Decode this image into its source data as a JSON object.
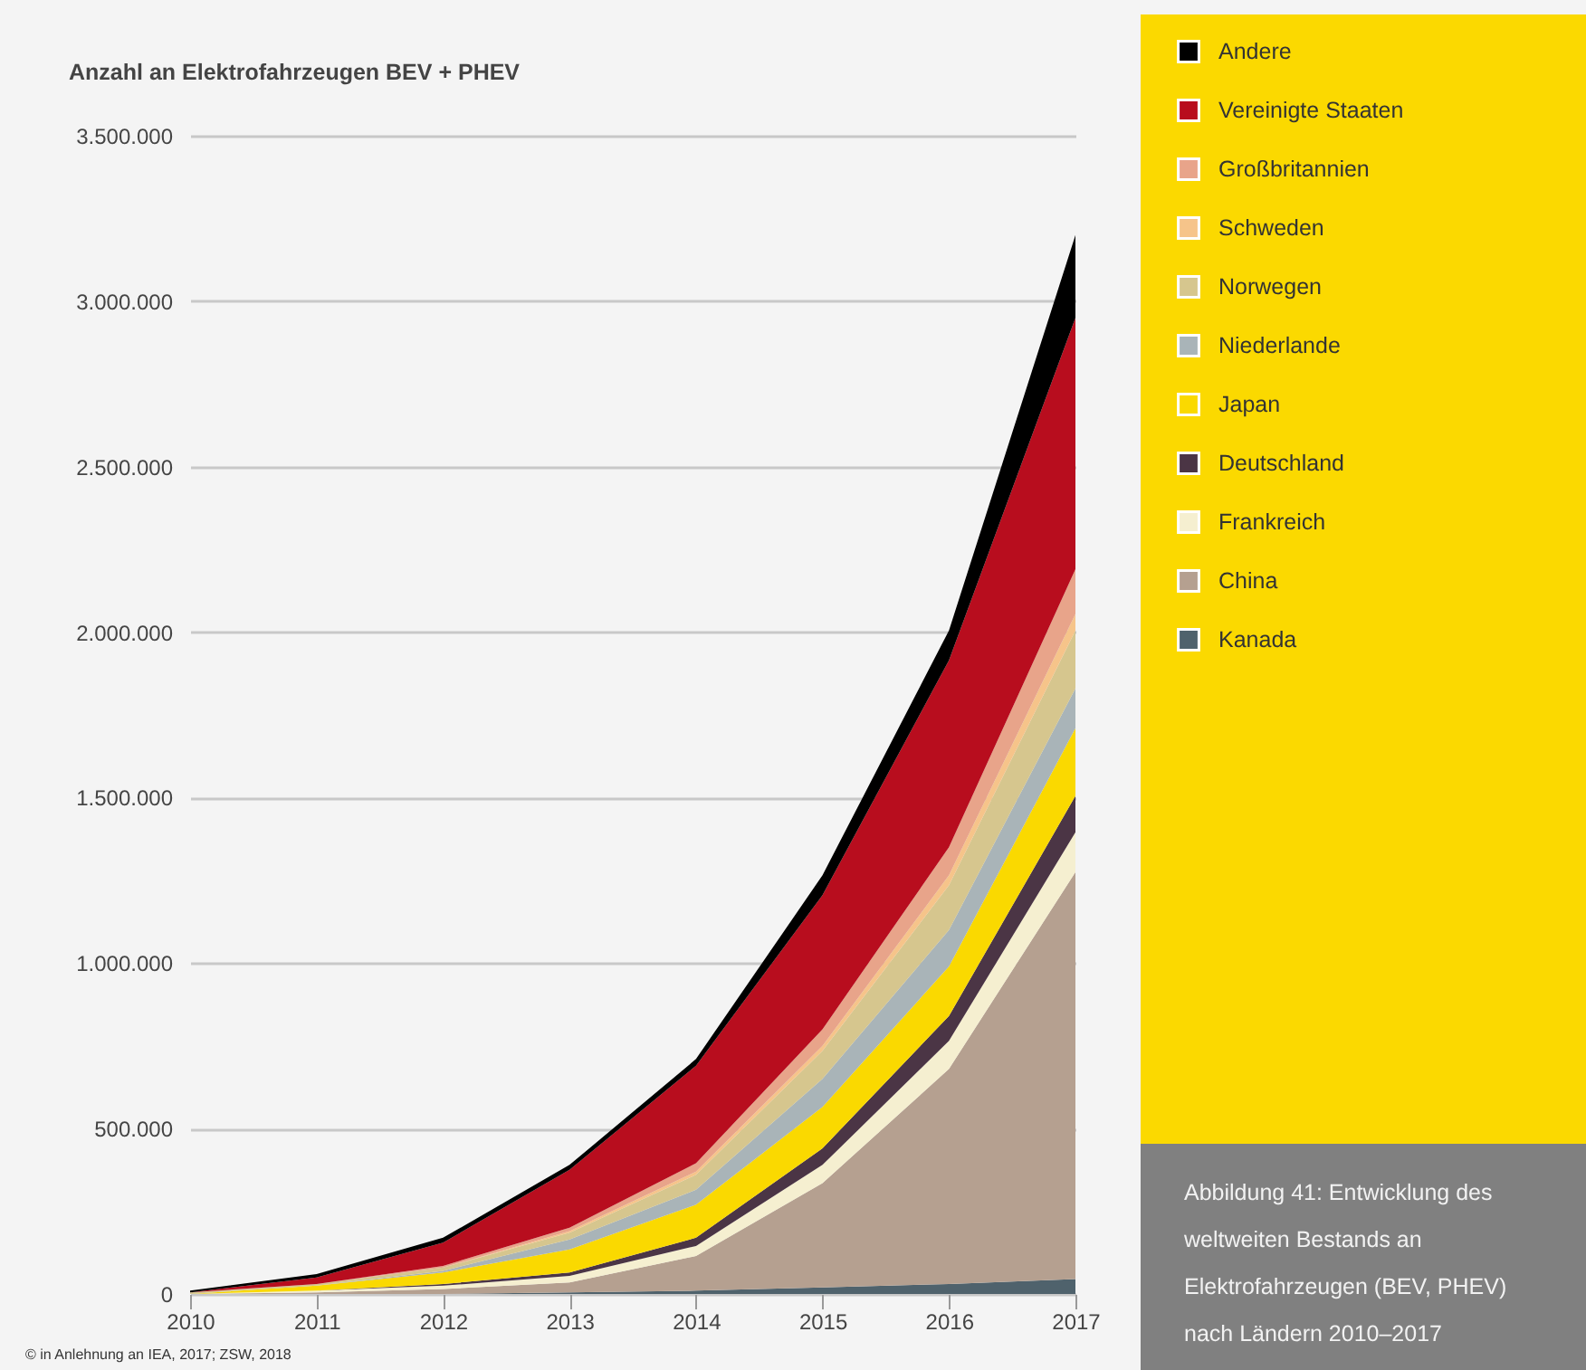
{
  "chart_data": {
    "type": "area",
    "title": "Anzahl an Elektrofahrzeugen BEV + PHEV",
    "stacked": true,
    "grid": "y",
    "legend": "right",
    "x": [
      2010,
      2011,
      2012,
      2013,
      2014,
      2015,
      2016,
      2017
    ],
    "xlim": [
      2010,
      2017
    ],
    "xticks": [
      2010,
      2011,
      2012,
      2013,
      2014,
      2015,
      2016,
      2017
    ],
    "ylim": [
      0,
      3500000
    ],
    "yticks": [
      0,
      {
        "value": 500000,
        "label": "500.000"
      },
      {
        "value": 1000000,
        "label": "1.000.000"
      },
      {
        "value": 1500000,
        "label": "1.500.000"
      },
      {
        "value": 2000000,
        "label": "2.000.000"
      },
      {
        "value": 2500000,
        "label": "2.500.000"
      },
      {
        "value": 3000000,
        "label": "3.000.000"
      },
      {
        "value": 3500000,
        "label": "3.500.000"
      }
    ],
    "series": [
      {
        "name": "Kanada",
        "color": "#4f626c",
        "values": [
          0,
          0,
          0,
          5000,
          10000,
          20000,
          30000,
          45000
        ]
      },
      {
        "name": "China",
        "color": "#b5a090",
        "values": [
          0,
          5000,
          15000,
          30000,
          105000,
          315000,
          650000,
          1230000
        ]
      },
      {
        "name": "Frankreich",
        "color": "#f5efd0",
        "values": [
          0,
          5000,
          10000,
          20000,
          30000,
          55000,
          85000,
          120000
        ]
      },
      {
        "name": "Deutschland",
        "color": "#4b3545",
        "values": [
          0,
          0,
          5000,
          10000,
          25000,
          50000,
          75000,
          110000
        ]
      },
      {
        "name": "Japan",
        "color": "#fad900",
        "values": [
          0,
          15000,
          35000,
          70000,
          100000,
          125000,
          150000,
          205000
        ]
      },
      {
        "name": "Niederlande",
        "color": "#a9b4b8",
        "values": [
          0,
          0,
          5000,
          30000,
          45000,
          85000,
          110000,
          120000
        ]
      },
      {
        "name": "Norwegen",
        "color": "#d6c68e",
        "values": [
          5000,
          5000,
          10000,
          20000,
          45000,
          85000,
          135000,
          175000
        ]
      },
      {
        "name": "Schweden",
        "color": "#f6c48a",
        "values": [
          0,
          0,
          0,
          5000,
          10000,
          15000,
          30000,
          50000
        ]
      },
      {
        "name": "Großbritannien",
        "color": "#e8a48a",
        "values": [
          0,
          0,
          5000,
          10000,
          25000,
          50000,
          85000,
          135000
        ]
      },
      {
        "name": "Vereinigte Staaten",
        "color": "#b80d1e",
        "values": [
          0,
          20000,
          70000,
          175000,
          295000,
          405000,
          565000,
          760000
        ]
      },
      {
        "name": "Andere",
        "color": "#000000",
        "values": [
          5000,
          10000,
          15000,
          15000,
          20000,
          60000,
          90000,
          250000
        ]
      }
    ],
    "annotations": [
      "© in Anlehnung an IEA, 2017; ZSW, 2018",
      "Abbildung 41: Entwicklung des weltweiten Bestands an Elektrofahrzeugen (BEV, PHEV) nach Ländern 2010–2017"
    ]
  }
}
